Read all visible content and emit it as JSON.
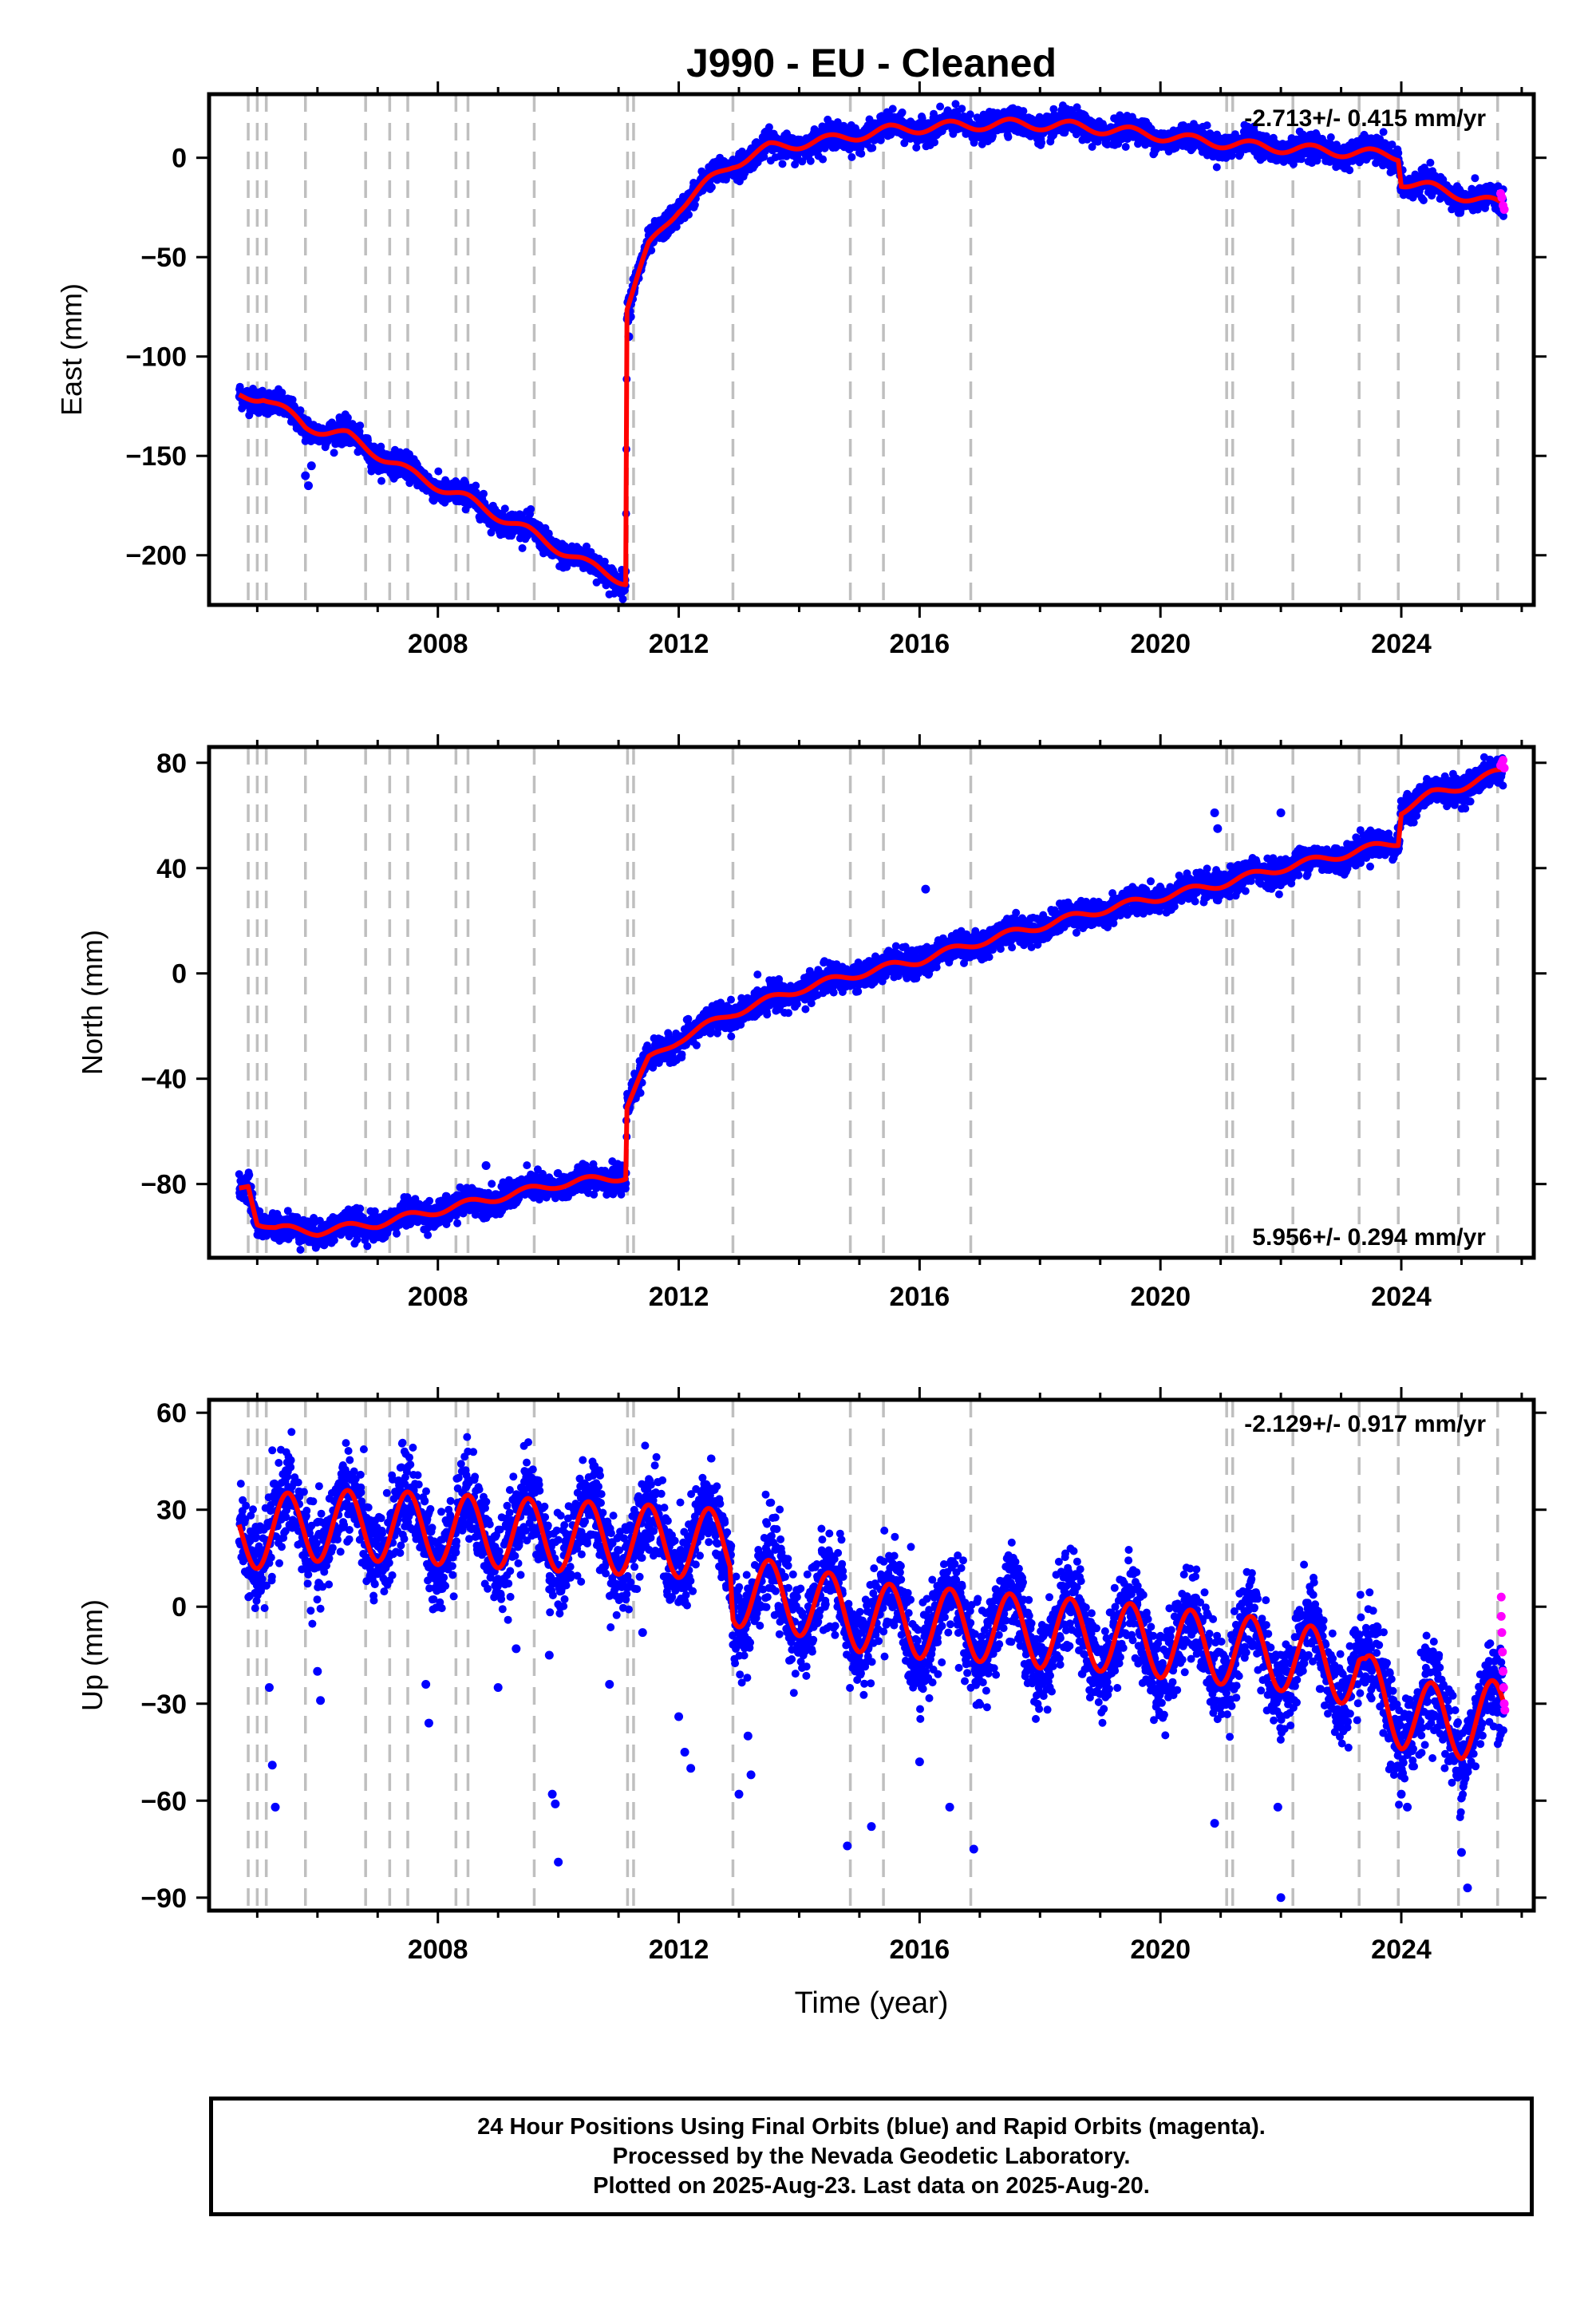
{
  "title": "J990  - EU - Cleaned",
  "footer": {
    "line1": "24 Hour Positions Using Final Orbits (blue) and Rapid Orbits (magenta).",
    "line2": "Processed by the Nevada Geodetic Laboratory.",
    "line3": "Plotted on 2025-Aug-23. Last data on 2025-Aug-20."
  },
  "colors": {
    "final": "#0000ff",
    "rapid": "#ff00ff",
    "model": "#ff0000",
    "steps": "#bfbfbf"
  },
  "chart_data": [
    {
      "type": "scatter",
      "component": "east",
      "ylabel": "East (mm)",
      "xlabel": "",
      "rate": "-2.713+/- 0.415 mm/yr",
      "rate_position": "top-right",
      "xlim": [
        2004.2,
        2026.2
      ],
      "ylim": [
        -225,
        32
      ],
      "xticks": [
        2008,
        2012,
        2016,
        2020,
        2024
      ],
      "yticks": [
        0,
        -50,
        -100,
        -150,
        -200
      ],
      "ytick_labels": [
        "0",
        "−50",
        "−100",
        "−150",
        "−200"
      ],
      "step_lines": [
        2004.85,
        2005.0,
        2005.15,
        2005.8,
        2006.8,
        2007.2,
        2007.5,
        2008.3,
        2008.5,
        2009.6,
        2011.15,
        2011.25,
        2012.9,
        2014.85,
        2015.4,
        2016.85,
        2021.1,
        2021.2,
        2022.2,
        2023.3,
        2023.95,
        2024.95,
        2025.6
      ],
      "model_trend": [
        [
          2004.7,
          -120
        ],
        [
          2005.1,
          -120
        ],
        [
          2005.8,
          -135
        ],
        [
          2006.5,
          -140
        ],
        [
          2007.5,
          -158
        ],
        [
          2008.5,
          -172
        ],
        [
          2009.5,
          -188
        ],
        [
          2010.5,
          -205
        ],
        [
          2011.12,
          -213
        ],
        [
          2011.14,
          -75
        ],
        [
          2011.5,
          -45
        ],
        [
          2012.0,
          -25
        ],
        [
          2012.5,
          -12
        ],
        [
          2012.9,
          -3
        ],
        [
          2013.5,
          5
        ],
        [
          2014.5,
          9
        ],
        [
          2015.5,
          14
        ],
        [
          2016.5,
          16
        ],
        [
          2017.5,
          17
        ],
        [
          2018.5,
          16
        ],
        [
          2019.5,
          13
        ],
        [
          2020.5,
          9
        ],
        [
          2021.5,
          6
        ],
        [
          2022.5,
          4
        ],
        [
          2023.5,
          2
        ],
        [
          2023.95,
          1
        ],
        [
          2024.0,
          -12
        ],
        [
          2024.5,
          -15
        ],
        [
          2025.0,
          -19
        ],
        [
          2025.7,
          -24
        ]
      ],
      "seasonal_amplitude": 2.5,
      "scatter_noise": 3,
      "outliers": [
        [
          2005.8,
          -160
        ],
        [
          2005.85,
          -165
        ],
        [
          2005.9,
          -155
        ],
        [
          2011.17,
          -90
        ],
        [
          2011.2,
          -80
        ]
      ],
      "rapid": [
        [
          2025.65,
          -18
        ],
        [
          2025.67,
          -20
        ],
        [
          2025.69,
          -24
        ],
        [
          2025.71,
          -26
        ]
      ]
    },
    {
      "type": "scatter",
      "component": "north",
      "ylabel": "North (mm)",
      "xlabel": "",
      "rate": "5.956+/- 0.294 mm/yr",
      "rate_position": "bottom-right",
      "xlim": [
        2004.2,
        2026.2
      ],
      "ylim": [
        -108,
        86
      ],
      "xticks": [
        2008,
        2012,
        2016,
        2020,
        2024
      ],
      "yticks": [
        80,
        40,
        0,
        -40,
        -80
      ],
      "ytick_labels": [
        "80",
        "40",
        "0",
        "−40",
        "−80"
      ],
      "step_lines": [
        2004.85,
        2005.0,
        2005.15,
        2005.8,
        2006.8,
        2007.2,
        2007.5,
        2008.3,
        2008.5,
        2009.6,
        2011.15,
        2011.25,
        2012.9,
        2014.85,
        2015.4,
        2016.85,
        2021.1,
        2021.2,
        2022.2,
        2023.3,
        2023.95,
        2024.95,
        2025.6
      ],
      "model_trend": [
        [
          2004.7,
          -82
        ],
        [
          2004.85,
          -80
        ],
        [
          2005.0,
          -94
        ],
        [
          2005.3,
          -97
        ],
        [
          2006.0,
          -98
        ],
        [
          2007.0,
          -95
        ],
        [
          2008.0,
          -90
        ],
        [
          2009.0,
          -85
        ],
        [
          2010.0,
          -80
        ],
        [
          2011.12,
          -77
        ],
        [
          2011.14,
          -50
        ],
        [
          2011.5,
          -33
        ],
        [
          2012.0,
          -25
        ],
        [
          2012.9,
          -15
        ],
        [
          2014.0,
          -6
        ],
        [
          2015.0,
          0
        ],
        [
          2016.0,
          5
        ],
        [
          2017.0,
          12
        ],
        [
          2018.0,
          18
        ],
        [
          2019.0,
          24
        ],
        [
          2020.0,
          29
        ],
        [
          2021.0,
          34
        ],
        [
          2022.0,
          40
        ],
        [
          2023.0,
          45
        ],
        [
          2023.95,
          50
        ],
        [
          2024.0,
          62
        ],
        [
          2024.5,
          68
        ],
        [
          2025.0,
          71
        ],
        [
          2025.7,
          77
        ]
      ],
      "seasonal_amplitude": 1.5,
      "scatter_noise": 2.5,
      "outliers": [
        [
          2020.9,
          61
        ],
        [
          2020.95,
          55
        ],
        [
          2022.0,
          61
        ],
        [
          2016.1,
          32
        ],
        [
          2008.8,
          -73
        ]
      ],
      "rapid": [
        [
          2025.65,
          79
        ],
        [
          2025.67,
          80
        ],
        [
          2025.69,
          81
        ],
        [
          2025.71,
          78
        ]
      ]
    },
    {
      "type": "scatter",
      "component": "up",
      "ylabel": "Up (mm)",
      "xlabel": "Time (year)",
      "rate": "-2.129+/- 0.917 mm/yr",
      "rate_position": "top-right",
      "xlim": [
        2004.2,
        2026.2
      ],
      "ylim": [
        -94,
        64
      ],
      "xticks": [
        2008,
        2012,
        2016,
        2020,
        2024
      ],
      "yticks": [
        60,
        30,
        0,
        -30,
        -60,
        -90
      ],
      "ytick_labels": [
        "60",
        "30",
        "0",
        "−30",
        "−60",
        "−90"
      ],
      "step_lines": [
        2004.85,
        2005.0,
        2005.15,
        2005.8,
        2006.8,
        2007.2,
        2007.5,
        2008.3,
        2008.5,
        2009.6,
        2011.15,
        2011.25,
        2012.9,
        2014.85,
        2015.4,
        2016.85,
        2021.1,
        2021.2,
        2022.2,
        2023.3,
        2023.95,
        2024.95,
        2025.6
      ],
      "model_trend": [
        [
          2004.7,
          22
        ],
        [
          2005.8,
          25
        ],
        [
          2007.0,
          25
        ],
        [
          2008.0,
          24
        ],
        [
          2009.0,
          23
        ],
        [
          2010.0,
          22
        ],
        [
          2011.0,
          21
        ],
        [
          2012.0,
          20
        ],
        [
          2012.85,
          19
        ],
        [
          2012.9,
          5
        ],
        [
          2014.0,
          2
        ],
        [
          2015.0,
          -3
        ],
        [
          2016.0,
          -5
        ],
        [
          2017.0,
          -6
        ],
        [
          2018.0,
          -8
        ],
        [
          2019.0,
          -9
        ],
        [
          2020.0,
          -11
        ],
        [
          2021.0,
          -13
        ],
        [
          2022.0,
          -15
        ],
        [
          2023.3,
          -20
        ],
        [
          2023.4,
          -25
        ],
        [
          2024.0,
          -33
        ],
        [
          2025.0,
          -36
        ],
        [
          2025.7,
          -33
        ]
      ],
      "seasonal_amplitude": 11,
      "scatter_noise": 7,
      "outliers": [
        [
          2005.2,
          -25
        ],
        [
          2005.25,
          -49
        ],
        [
          2005.3,
          -62
        ],
        [
          2006.0,
          -20
        ],
        [
          2006.05,
          -29
        ],
        [
          2007.8,
          -24
        ],
        [
          2007.85,
          -36
        ],
        [
          2009.0,
          -25
        ],
        [
          2009.3,
          -13
        ],
        [
          2009.85,
          -15
        ],
        [
          2009.9,
          -58
        ],
        [
          2009.95,
          -61
        ],
        [
          2010.0,
          -79
        ],
        [
          2010.85,
          -24
        ],
        [
          2011.4,
          -8
        ],
        [
          2012.0,
          -34
        ],
        [
          2012.1,
          -45
        ],
        [
          2012.2,
          -50
        ],
        [
          2013.0,
          -58
        ],
        [
          2013.15,
          -40
        ],
        [
          2013.2,
          -52
        ],
        [
          2014.8,
          -74
        ],
        [
          2015.2,
          -68
        ],
        [
          2016.0,
          -48
        ],
        [
          2016.5,
          -62
        ],
        [
          2016.9,
          -75
        ],
        [
          2020.9,
          -67
        ],
        [
          2021.95,
          -62
        ],
        [
          2022.0,
          -90
        ],
        [
          2024.0,
          -58
        ],
        [
          2024.1,
          -62
        ],
        [
          2025.0,
          -76
        ],
        [
          2025.1,
          -87
        ]
      ],
      "rapid": [
        [
          2025.66,
          3
        ],
        [
          2025.66,
          -3
        ],
        [
          2025.67,
          -8
        ],
        [
          2025.68,
          -14
        ],
        [
          2025.69,
          -20
        ],
        [
          2025.7,
          -25
        ],
        [
          2025.71,
          -30
        ],
        [
          2025.72,
          -32
        ]
      ]
    }
  ]
}
